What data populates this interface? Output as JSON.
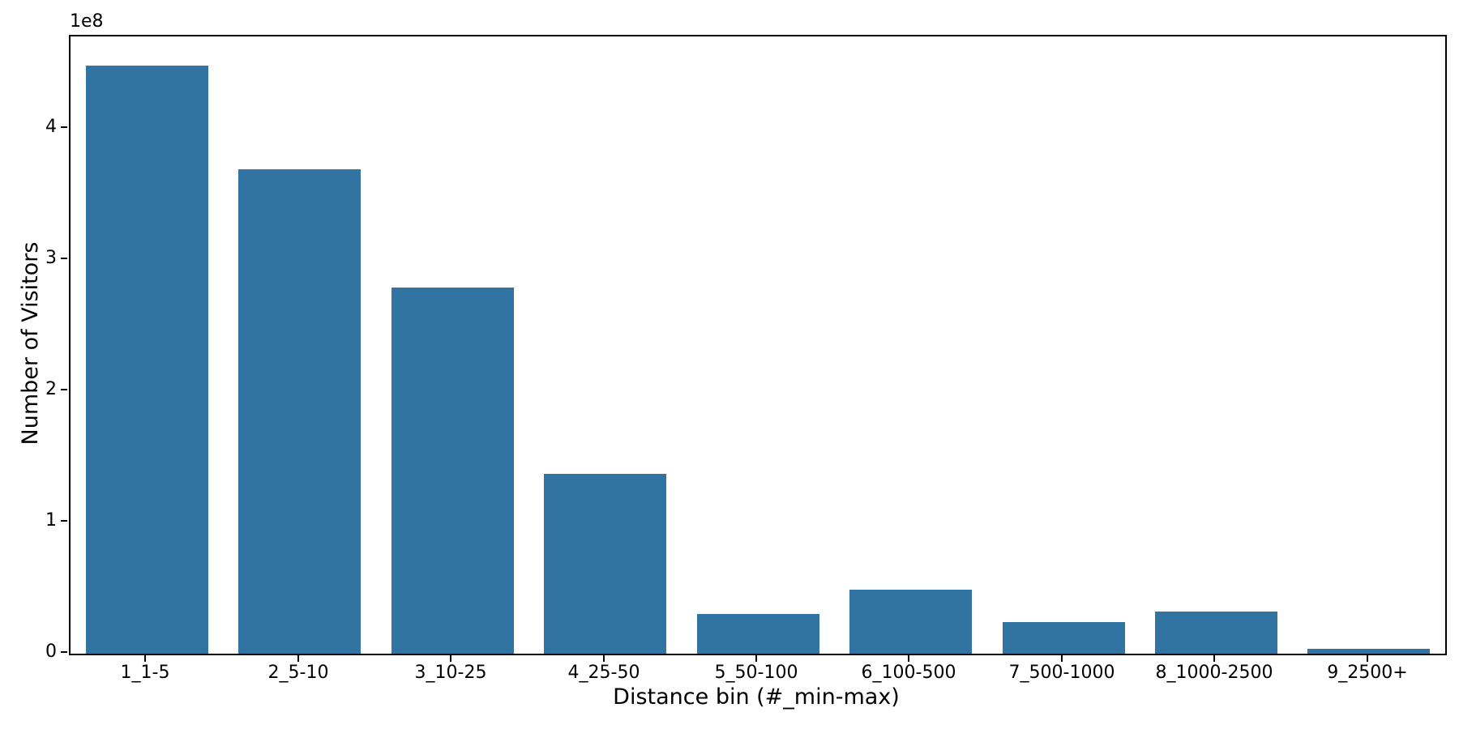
{
  "figure": {
    "background_color": "#ffffff",
    "axis_color": "#000000",
    "text_color": "#000000"
  },
  "chart_data": {
    "type": "bar",
    "title": "",
    "xlabel": "Distance bin (#_min-max)",
    "ylabel": "Number of Visitors",
    "offset_text": "1e8",
    "categories": [
      "1_1-5",
      "2_5-10",
      "3_10-25",
      "4_25-50",
      "5_50-100",
      "6_100-500",
      "7_500-1000",
      "8_1000-2500",
      "9_2500+"
    ],
    "values": [
      448000000,
      369000000,
      279000000,
      137000000,
      30000000,
      49000000,
      24000000,
      32000000,
      3500000
    ],
    "bar_color": "#3274a1",
    "bar_width_fraction": 0.8,
    "ylim": [
      0,
      470400000
    ],
    "yticks": [
      0,
      100000000,
      200000000,
      300000000,
      400000000
    ],
    "ytick_labels": [
      "0",
      "1",
      "2",
      "3",
      "4"
    ],
    "grid": false,
    "legend": null
  }
}
